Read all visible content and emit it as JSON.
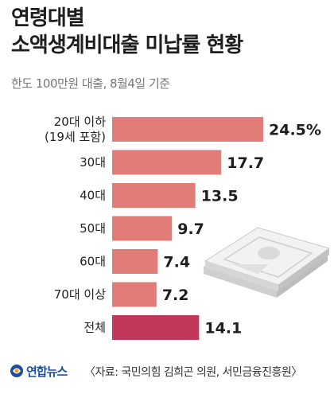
{
  "header": {
    "title_line1": "연령대별",
    "title_line2": "소액생계비대출 미납률 현황",
    "subtitle": "한도 100만원 대출, 8월4일 기준"
  },
  "footer": {
    "logo": "연합뉴스",
    "source": "〈자료: 국민의힘 김희곤 의원, 서민금융진흥원〉"
  },
  "colors": {
    "bar": "#e17c79",
    "bar_total": "#c0395a",
    "value_text": "#1e1e1e"
  },
  "chart_data": {
    "type": "bar",
    "orientation": "horizontal",
    "unit": "%",
    "categories": [
      "20대 이하\n(19세 포함)",
      "30대",
      "40대",
      "50대",
      "60대",
      "70대 이상",
      "전체"
    ],
    "values": [
      24.5,
      17.7,
      13.5,
      9.7,
      7.4,
      7.2,
      14.1
    ],
    "labels": [
      "24.5%",
      "17.7",
      "13.5",
      "9.7",
      "7.4",
      "7.2",
      "14.1"
    ],
    "highlight": "전체",
    "grid": false,
    "legend": "none"
  }
}
